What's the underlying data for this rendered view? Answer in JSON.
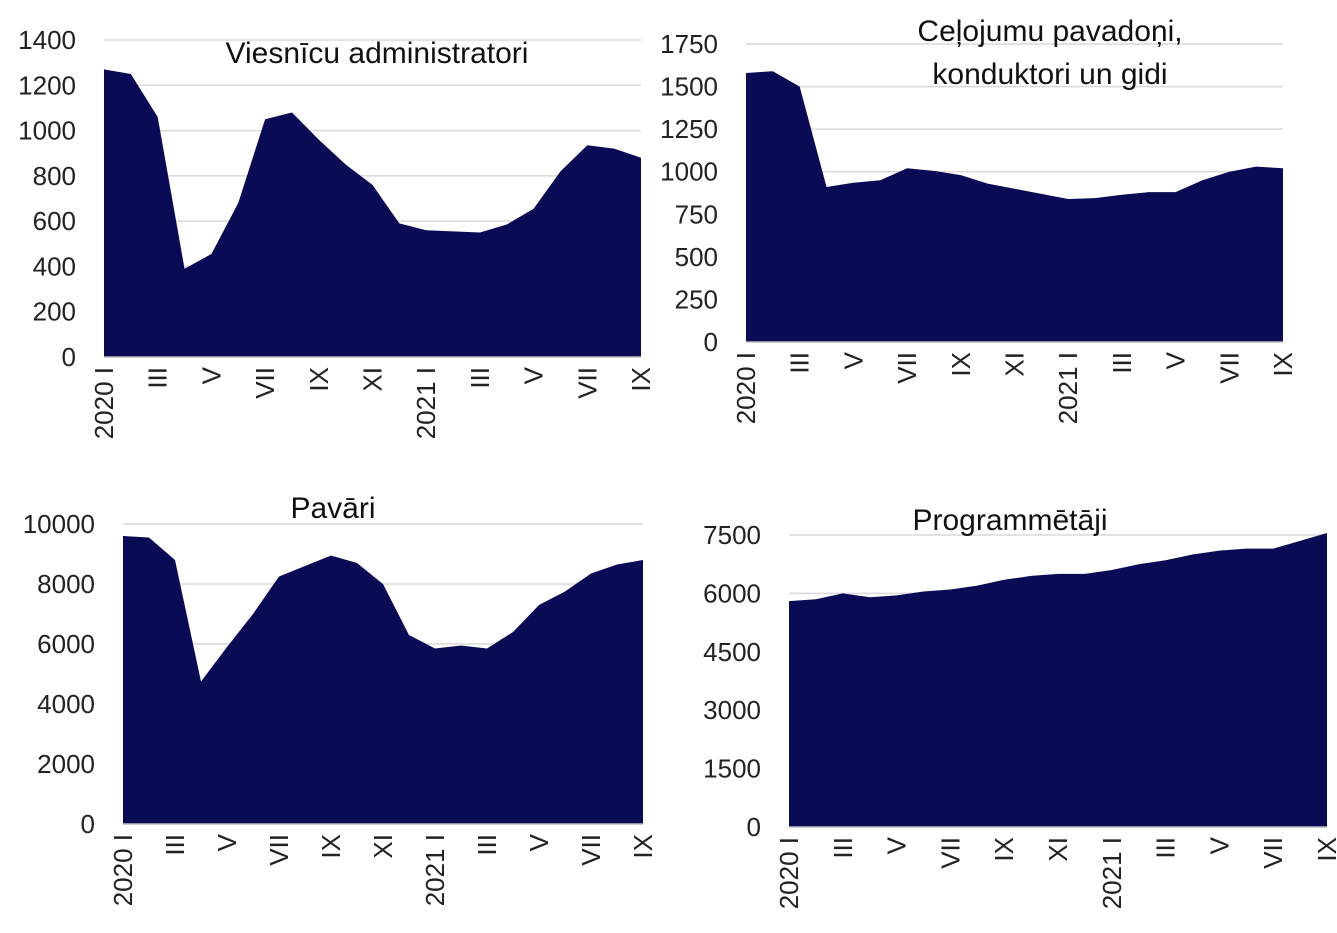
{
  "chart_data": [
    {
      "type": "area",
      "title": "Viesnīcu administratori",
      "categories": [
        "2020 I",
        null,
        "III",
        null,
        "V",
        null,
        "VII",
        null,
        "IX",
        null,
        "XI",
        null,
        "2021 I",
        null,
        "III",
        null,
        "V",
        null,
        "VII",
        null,
        "IX"
      ],
      "values": [
        1270,
        1250,
        1060,
        390,
        455,
        680,
        1050,
        1080,
        960,
        850,
        760,
        590,
        560,
        555,
        550,
        585,
        655,
        820,
        935,
        920,
        880
      ],
      "color": "#0b0b55",
      "ylim": [
        0,
        1400
      ],
      "yticks": [
        0,
        200,
        400,
        600,
        800,
        1000,
        1200,
        1400
      ],
      "grid": true
    },
    {
      "type": "area",
      "title": "Ceļojumu pavadoņi, konduktori un gidi",
      "categories": [
        "2020 I",
        null,
        "III",
        null,
        "V",
        null,
        "VII",
        null,
        "IX",
        null,
        "XI",
        null,
        "2021 I",
        null,
        "III",
        null,
        "V",
        null,
        "VII",
        null,
        "IX"
      ],
      "values": [
        1580,
        1590,
        1500,
        910,
        935,
        950,
        1020,
        1005,
        980,
        930,
        900,
        870,
        840,
        845,
        865,
        880,
        880,
        950,
        1000,
        1030,
        1020
      ],
      "color": "#0b0b55",
      "ylim": [
        0,
        1750
      ],
      "yticks": [
        0,
        250,
        500,
        750,
        1000,
        1250,
        1500,
        1750
      ],
      "grid": true
    },
    {
      "type": "area",
      "title": "Pavāri",
      "categories": [
        "2020 I",
        null,
        "III",
        null,
        "V",
        null,
        "VII",
        null,
        "IX",
        null,
        "XI",
        null,
        "2021 I",
        null,
        "III",
        null,
        "V",
        null,
        "VII",
        null,
        "IX"
      ],
      "values": [
        9600,
        9550,
        8800,
        4750,
        5900,
        7000,
        8250,
        8600,
        8950,
        8700,
        8000,
        6300,
        5850,
        5950,
        5850,
        6400,
        7300,
        7750,
        8350,
        8650,
        8800
      ],
      "color": "#0b0b55",
      "ylim": [
        0,
        10000
      ],
      "yticks": [
        0,
        2000,
        4000,
        6000,
        8000,
        10000
      ],
      "grid": true
    },
    {
      "type": "area",
      "title": "Programmētāji",
      "categories": [
        "2020 I",
        null,
        "III",
        null,
        "V",
        null,
        "VII",
        null,
        "IX",
        null,
        "XI",
        null,
        "2021 I",
        null,
        "III",
        null,
        "V",
        null,
        "VII",
        null,
        "IX"
      ],
      "values": [
        5800,
        5850,
        6000,
        5900,
        5950,
        6050,
        6100,
        6200,
        6350,
        6450,
        6500,
        6500,
        6600,
        6750,
        6850,
        7000,
        7100,
        7150,
        7150,
        7350,
        7550
      ],
      "color": "#0b0b55",
      "ylim": [
        0,
        7500
      ],
      "yticks": [
        0,
        1500,
        3000,
        4500,
        6000,
        7500
      ],
      "grid": true
    }
  ]
}
